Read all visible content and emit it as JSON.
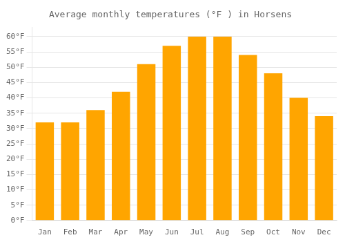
{
  "chart_data": {
    "type": "bar",
    "title": "Average monthly temperatures (°F ) in Horsens",
    "categories": [
      "Jan",
      "Feb",
      "Mar",
      "Apr",
      "May",
      "Jun",
      "Jul",
      "Aug",
      "Sep",
      "Oct",
      "Nov",
      "Dec"
    ],
    "values": [
      32,
      32,
      36,
      42,
      51,
      57,
      60,
      60,
      54,
      48,
      40,
      34
    ],
    "color": "#FFA500",
    "ylim": [
      0,
      63
    ],
    "yticks": [
      {
        "value": 0,
        "label": "0°F"
      },
      {
        "value": 5,
        "label": "5°F"
      },
      {
        "value": 10,
        "label": "10°F"
      },
      {
        "value": 15,
        "label": "15°F"
      },
      {
        "value": 20,
        "label": "20°F"
      },
      {
        "value": 25,
        "label": "25°F"
      },
      {
        "value": 30,
        "label": "30°F"
      },
      {
        "value": 35,
        "label": "35°F"
      },
      {
        "value": 40,
        "label": "40°F"
      },
      {
        "value": 45,
        "label": "45°F"
      },
      {
        "value": 50,
        "label": "50°F"
      },
      {
        "value": 55,
        "label": "55°F"
      },
      {
        "value": 60,
        "label": "60°F"
      }
    ],
    "grid": true
  }
}
